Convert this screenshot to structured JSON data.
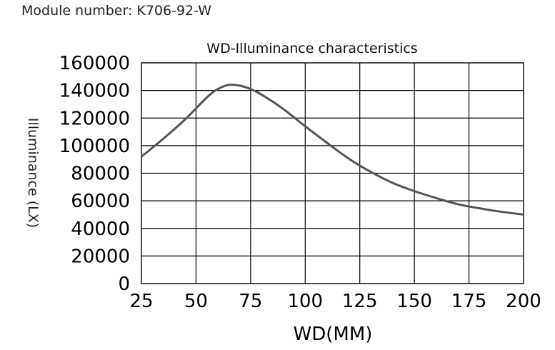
{
  "header": {
    "module_number": "Module number: K706-92-W"
  },
  "chart_data": {
    "type": "line",
    "title": "WD-Illuminance characteristics",
    "xlabel": "WD(MM)",
    "ylabel": "Illuminance (LX)",
    "xlim": [
      25,
      200
    ],
    "ylim": [
      0,
      160000
    ],
    "x_ticks": [
      25,
      50,
      75,
      100,
      125,
      150,
      175,
      200
    ],
    "y_ticks": [
      0,
      20000,
      40000,
      60000,
      80000,
      100000,
      120000,
      140000,
      160000
    ],
    "grid": true,
    "series": [
      {
        "color": "#555555",
        "x": [
          25,
          35,
          45,
          55,
          60,
          65,
          70,
          75,
          80,
          90,
          100,
          110,
          120,
          130,
          140,
          150,
          160,
          170,
          180,
          190,
          200
        ],
        "y": [
          92000,
          105000,
          119000,
          135000,
          141000,
          144000,
          143500,
          141000,
          137000,
          126500,
          114000,
          102000,
          90500,
          81000,
          73000,
          67000,
          62000,
          57500,
          54500,
          52000,
          50000
        ]
      }
    ]
  }
}
